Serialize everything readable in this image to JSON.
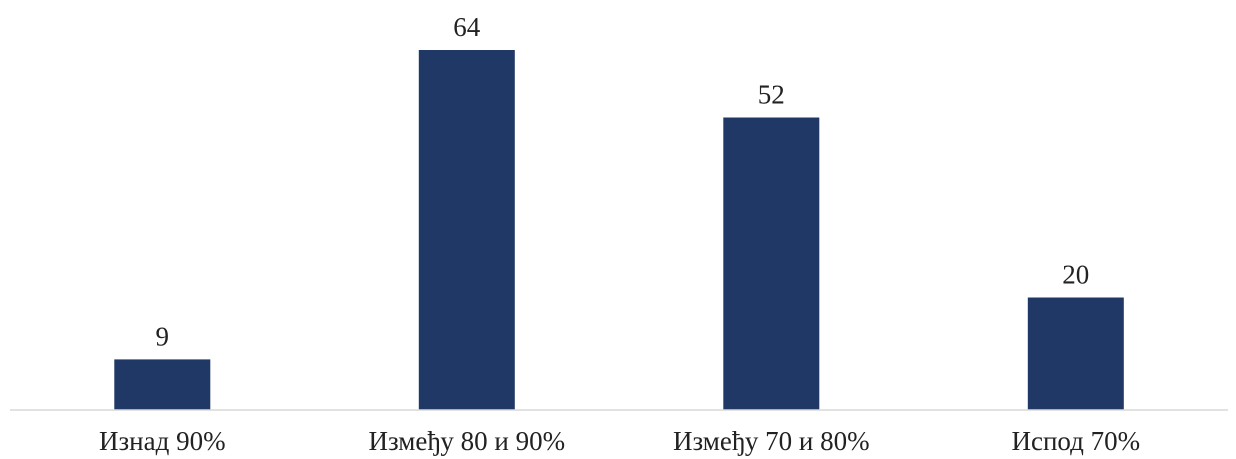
{
  "chart_data": {
    "type": "bar",
    "title": "",
    "xlabel": "",
    "ylabel": "",
    "categories": [
      "Изнад 90%",
      "Између 80 и 90%",
      "Између 70 и 80%",
      "Испод 70%"
    ],
    "values": [
      9,
      64,
      52,
      20
    ],
    "data_labels": [
      "9",
      "64",
      "52",
      "20"
    ],
    "ylim": [
      0,
      64
    ],
    "grid": false,
    "legend": "none",
    "colors": {
      "bar": "#1f3866",
      "axis": "#d9d9d9",
      "text": "#222222"
    }
  }
}
